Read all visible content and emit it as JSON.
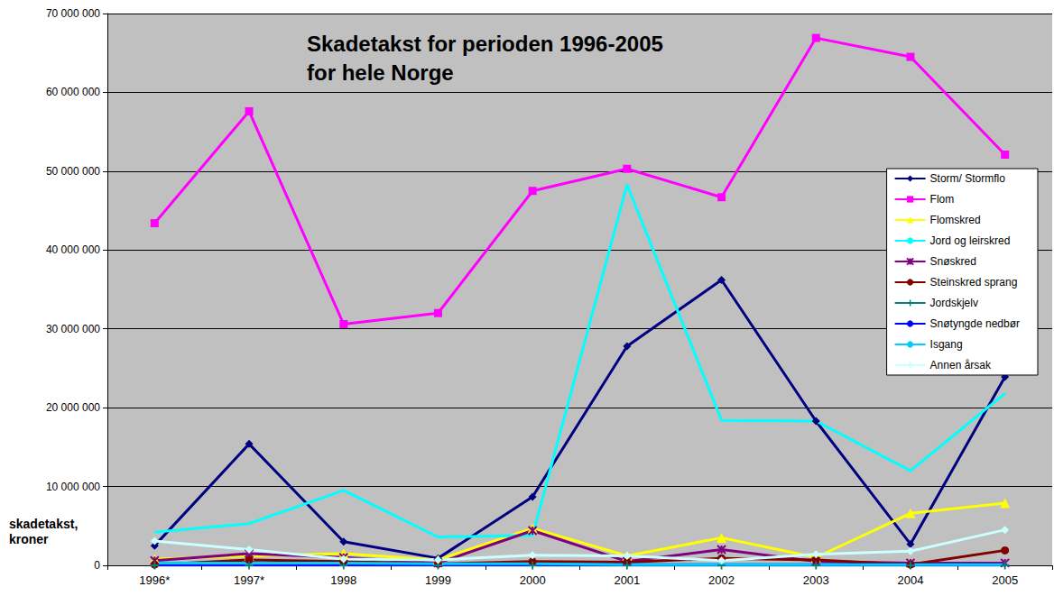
{
  "chart_data": {
    "type": "line",
    "title": "Skadetakst for perioden 1996-2005\nfor hele Norge",
    "ylabel": "skadetakst,\nkroner",
    "categories": [
      "1996*",
      "1997*",
      "1998",
      "1999",
      "2000",
      "2001",
      "2002",
      "2003",
      "2004",
      "2005"
    ],
    "ylim": [
      0,
      70000000
    ],
    "yticks": [
      0,
      {
        "value": 10000000,
        "label": "10 000 000"
      },
      {
        "value": 20000000,
        "label": "20 000 000"
      },
      {
        "value": 30000000,
        "label": "30 000 000"
      },
      {
        "value": 40000000,
        "label": "40 000 000"
      },
      {
        "value": 50000000,
        "label": "50 000 000"
      },
      {
        "value": 60000000,
        "label": "60 000 000"
      },
      {
        "value": 70000000,
        "label": "70 000 000"
      }
    ],
    "grid": true,
    "legend": "right",
    "series": [
      {
        "name": "Storm/ Stormflo",
        "color": "#000080",
        "marker": "diamond",
        "values": [
          2500000,
          15400000,
          3000000,
          900000,
          8700000,
          27800000,
          36200000,
          18300000,
          2700000,
          23900000
        ]
      },
      {
        "name": "Flom",
        "color": "#ff00ff",
        "marker": "square",
        "values": [
          43400000,
          57600000,
          30600000,
          32000000,
          47500000,
          50300000,
          46700000,
          66900000,
          64500000,
          52100000
        ]
      },
      {
        "name": "Flomskred",
        "color": "#ffff00",
        "marker": "triangle",
        "values": [
          800000,
          1200000,
          1500000,
          700000,
          4700000,
          1200000,
          3500000,
          1000000,
          6600000,
          7900000
        ]
      },
      {
        "name": "Jord og leirskred",
        "color": "#00ffff",
        "marker": "none",
        "values": [
          4200000,
          5300000,
          9500000,
          3600000,
          3800000,
          48300000,
          18400000,
          18300000,
          12000000,
          21800000
        ]
      },
      {
        "name": "Snøskred",
        "color": "#800080",
        "marker": "x",
        "values": [
          600000,
          1500000,
          1000000,
          300000,
          4400000,
          500000,
          2000000,
          500000,
          300000,
          300000
        ]
      },
      {
        "name": "Steinskred sprang",
        "color": "#800000",
        "marker": "circle",
        "values": [
          100000,
          700000,
          500000,
          200000,
          500000,
          400000,
          900000,
          700000,
          100000,
          1900000
        ]
      },
      {
        "name": "Jordskjelv",
        "color": "#008080",
        "marker": "plus",
        "values": [
          0,
          0,
          0,
          0,
          0,
          0,
          0,
          0,
          0,
          0
        ]
      },
      {
        "name": "Snøtyngde nedbør",
        "color": "#0000ff",
        "marker": "none",
        "values": [
          100000,
          100000,
          100000,
          100000,
          100000,
          100000,
          100000,
          100000,
          100000,
          100000
        ]
      },
      {
        "name": "Isgang",
        "color": "#00ccff",
        "marker": "none",
        "values": [
          300000,
          300000,
          300000,
          200000,
          200000,
          100000,
          100000,
          100000,
          100000,
          100000
        ]
      },
      {
        "name": "Annen årsak",
        "color": "#ccffff",
        "marker": "diamond",
        "values": [
          3100000,
          2000000,
          800000,
          700000,
          1300000,
          1200000,
          600000,
          1400000,
          1800000,
          4500000
        ]
      }
    ]
  }
}
